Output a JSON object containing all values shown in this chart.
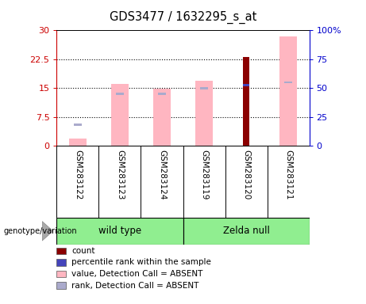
{
  "title": "GDS3477 / 1632295_s_at",
  "samples": [
    "GSM283122",
    "GSM283123",
    "GSM283124",
    "GSM283119",
    "GSM283120",
    "GSM283121"
  ],
  "groups": [
    "wild type",
    "wild type",
    "wild type",
    "Zelda null",
    "Zelda null",
    "Zelda null"
  ],
  "group_names": [
    "wild type",
    "Zelda null"
  ],
  "pink_bar_heights": [
    2.0,
    16.0,
    14.8,
    17.0,
    0,
    28.5
  ],
  "dark_red_bar_heights": [
    0,
    0,
    0,
    0,
    23.0,
    0
  ],
  "blue_marker_heights": [
    0,
    0,
    0,
    0,
    15.8,
    0
  ],
  "light_blue_marker_heights": [
    5.5,
    13.5,
    13.5,
    15.0,
    0,
    16.5
  ],
  "ylim_left": [
    0,
    30
  ],
  "ylim_right": [
    0,
    100
  ],
  "yticks_left": [
    0,
    7.5,
    15,
    22.5,
    30
  ],
  "yticks_right": [
    0,
    25,
    50,
    75,
    100
  ],
  "ytick_labels_left": [
    "0",
    "7.5",
    "15",
    "22.5",
    "30"
  ],
  "ytick_labels_right": [
    "0",
    "25",
    "50",
    "75",
    "100%"
  ],
  "left_axis_color": "#cc0000",
  "right_axis_color": "#0000cc",
  "green_color": "#90ee90",
  "bar_width": 0.4,
  "pink_color": "#ffb6c1",
  "dark_red_color": "#8b0000",
  "blue_color": "#4444bb",
  "light_blue_color": "#aaaacc",
  "legend_items": [
    {
      "label": "count",
      "color": "#8b0000"
    },
    {
      "label": "percentile rank within the sample",
      "color": "#4444bb"
    },
    {
      "label": "value, Detection Call = ABSENT",
      "color": "#ffb6c1"
    },
    {
      "label": "rank, Detection Call = ABSENT",
      "color": "#aaaacc"
    }
  ]
}
